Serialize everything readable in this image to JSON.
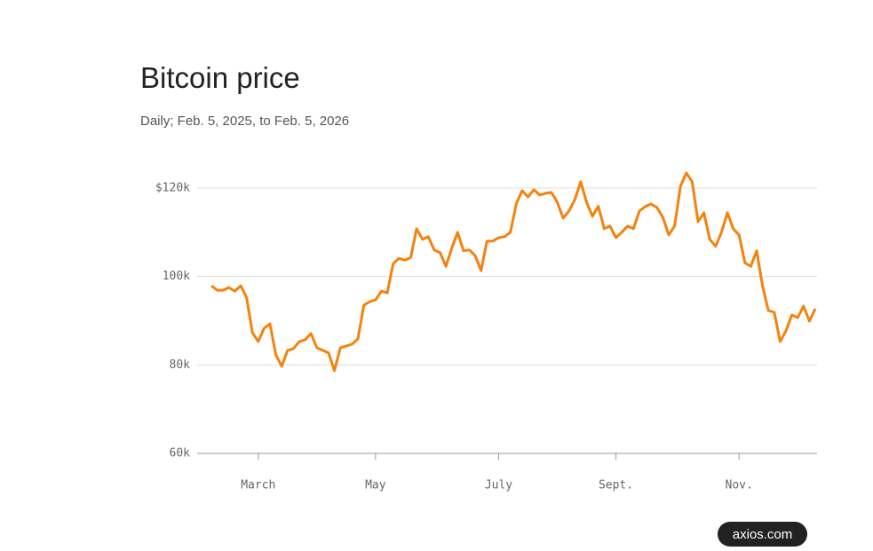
{
  "chart_data": {
    "type": "line",
    "title": "Bitcoin price",
    "subtitle": "Daily; Feb. 5, 2025, to Feb. 5, 2026",
    "credit": "axios.com",
    "categories": [
      null,
      null,
      null,
      null,
      null,
      null,
      null,
      null,
      "March",
      null,
      null,
      null,
      null,
      null,
      null,
      null,
      null,
      null,
      null,
      null,
      null,
      null,
      null,
      null,
      null,
      null,
      null,
      null,
      "May",
      null,
      null,
      null,
      null,
      null,
      null,
      null,
      null,
      null,
      null,
      null,
      null,
      null,
      null,
      null,
      null,
      null,
      null,
      null,
      null,
      "July",
      null,
      null,
      null,
      null,
      null,
      null,
      null,
      null,
      null,
      null,
      null,
      null,
      null,
      null,
      null,
      null,
      null,
      null,
      null,
      "Sept.",
      null,
      null,
      null,
      null,
      null,
      null,
      null,
      null,
      null,
      null,
      null,
      null,
      null,
      null,
      null,
      null,
      null,
      null,
      null,
      null,
      "Nov.",
      null,
      null,
      null,
      null,
      null,
      null,
      null,
      null,
      null,
      null,
      null,
      null,
      null
    ],
    "series": [
      {
        "color": "#f5820d",
        "values": [
          97900,
          96900,
          96900,
          97500,
          96700,
          97900,
          95300,
          87300,
          85300,
          88300,
          89300,
          82300,
          79700,
          83300,
          83700,
          85300,
          85700,
          87100,
          83900,
          83300,
          82700,
          78700,
          83900,
          84300,
          84700,
          85900,
          93500,
          94300,
          94700,
          96700,
          96300,
          102900,
          104100,
          103700,
          104300,
          110800,
          108400,
          109000,
          106000,
          105400,
          102300,
          106400,
          110000,
          105800,
          106000,
          104700,
          101300,
          108000,
          108000,
          108800,
          109000,
          110000,
          116400,
          119400,
          118000,
          119600,
          118400,
          118800,
          119000,
          116800,
          113200,
          114800,
          117400,
          121400,
          116800,
          113600,
          115900,
          110800,
          111400,
          108800,
          110000,
          111400,
          110800,
          114800,
          115800,
          116400,
          115600,
          113400,
          109400,
          111400,
          120400,
          123400,
          121400,
          112400,
          114400,
          108400,
          106800,
          110000,
          114400,
          110800,
          109400,
          103100,
          102300,
          105800,
          97900,
          92300,
          91900,
          85300,
          87700,
          91300,
          90700,
          93300,
          89900,
          92700
        ]
      }
    ],
    "ylim": [
      60000,
      125000
    ],
    "yticks": [
      {
        "value": 60000,
        "label": "60k"
      },
      {
        "value": 80000,
        "label": "80k"
      },
      {
        "value": 100000,
        "label": "100k"
      },
      {
        "value": 120000,
        "label": "$120k"
      }
    ],
    "grid": true
  }
}
